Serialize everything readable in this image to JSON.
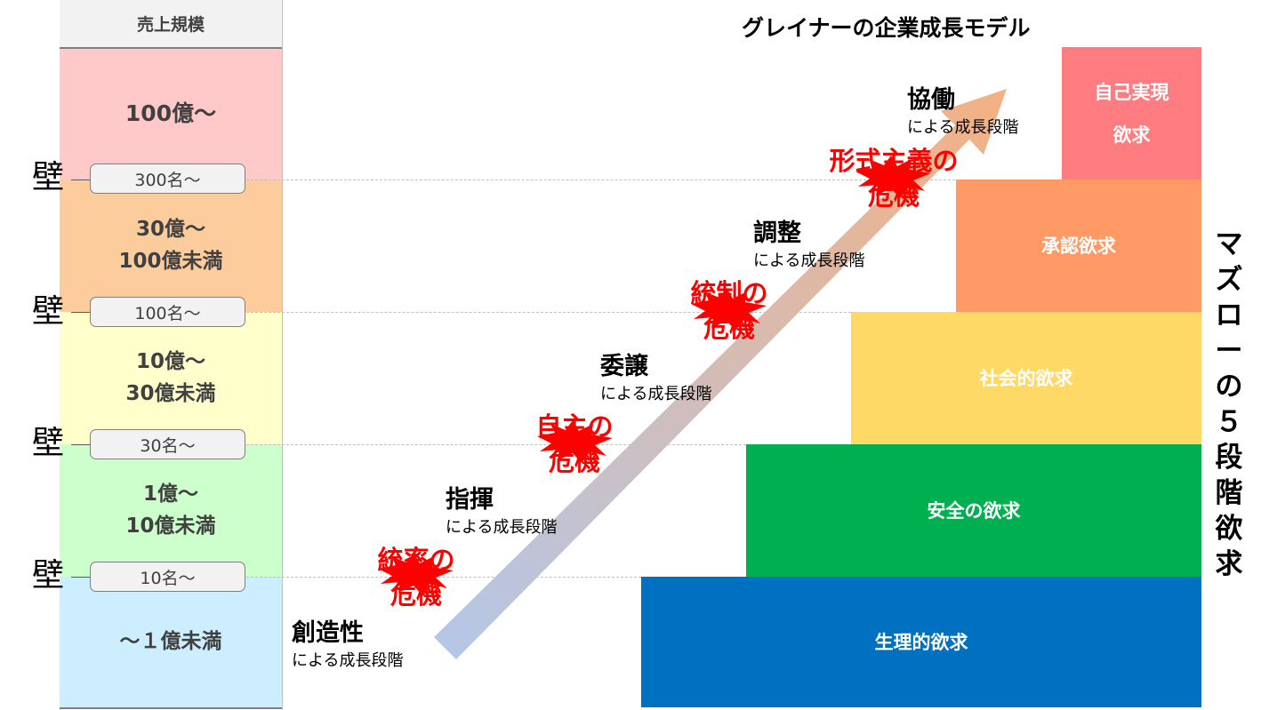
{
  "title": "グレイナーの企業成長モデル",
  "revenue_column": {
    "header": "売上規模",
    "bands": [
      {
        "lines": [
          "100億〜"
        ],
        "color": "#ffc9c9"
      },
      {
        "lines": [
          "30億〜",
          "100億未満"
        ],
        "color": "#fdcc9c"
      },
      {
        "lines": [
          "10億〜",
          "30億未満"
        ],
        "color": "#ffffcc"
      },
      {
        "lines": [
          "1億〜",
          "10億未満"
        ],
        "color": "#ccffcc"
      },
      {
        "lines": [
          "〜１億未満"
        ],
        "color": "#cceeff"
      }
    ]
  },
  "walls": [
    {
      "label": "壁",
      "employees": "300名〜"
    },
    {
      "label": "壁",
      "employees": "100名〜"
    },
    {
      "label": "壁",
      "employees": "30名〜"
    },
    {
      "label": "壁",
      "employees": "10名〜"
    }
  ],
  "stages": [
    {
      "title": "創造性",
      "sub": "による成長段階"
    },
    {
      "title": "指揮",
      "sub": "による成長段階"
    },
    {
      "title": "委譲",
      "sub": "による成長段階"
    },
    {
      "title": "調整",
      "sub": "による成長段階"
    },
    {
      "title": "協働",
      "sub": "による成長段階"
    }
  ],
  "crises": [
    {
      "line1": "統率の",
      "line2": "危機"
    },
    {
      "line1": "自主の",
      "line2": "危機"
    },
    {
      "line1": "統制の",
      "line2": "危機"
    },
    {
      "line1": "形式主義の",
      "line2": "危機"
    }
  ],
  "maslow": {
    "title_chars": [
      "マ",
      "ズ",
      "ロ",
      "ー",
      "の",
      "５",
      "段",
      "階",
      "欲",
      "求"
    ],
    "levels": [
      {
        "lines": [
          "自己実現",
          "欲求"
        ],
        "color": "#ff7c80"
      },
      {
        "lines": [
          "承認欲求"
        ],
        "color": "#ff9966"
      },
      {
        "lines": [
          "社会的欲求"
        ],
        "color": "#ffd966"
      },
      {
        "lines": [
          "安全の欲求"
        ],
        "color": "#00b050"
      },
      {
        "lines": [
          "生理的欲求"
        ],
        "color": "#0070c0"
      }
    ]
  },
  "arrow_colors": {
    "start": "#b4c7e7",
    "end": "#f4b183"
  }
}
